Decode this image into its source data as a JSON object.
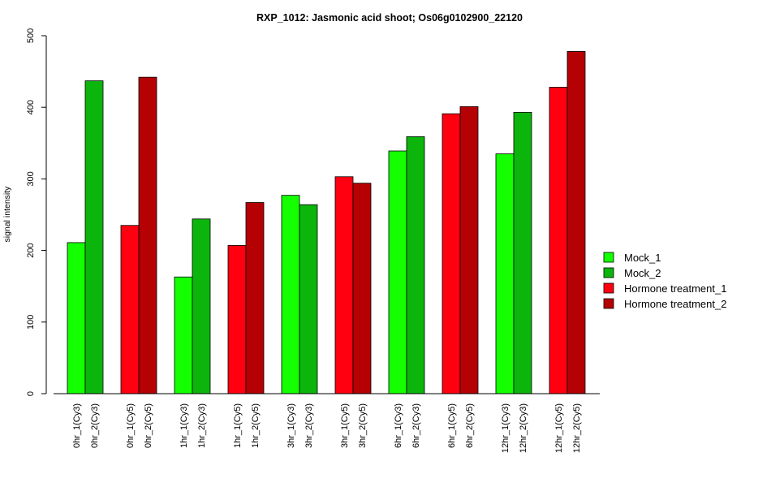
{
  "chart_data": {
    "type": "bar",
    "title": "RXP_1012: Jasmonic acid shoot; Os06g0102900_22120",
    "ylabel": "signal intensity",
    "xlabel": "",
    "ylim": [
      0,
      500
    ],
    "yticks": [
      0,
      100,
      200,
      300,
      400,
      500
    ],
    "grid": false,
    "legend_position": "right",
    "categories": [
      "0hr_1(Cy3)",
      "0hr_2(Cy3)",
      "0hr_1(Cy5)",
      "0hr_2(Cy5)",
      "1hr_1(Cy3)",
      "1hr_2(Cy3)",
      "1hr_1(Cy5)",
      "1hr_2(Cy5)",
      "3hr_1(Cy3)",
      "3hr_2(Cy3)",
      "3hr_1(Cy5)",
      "3hr_2(Cy5)",
      "6hr_1(Cy3)",
      "6hr_2(Cy3)",
      "6hr_1(Cy5)",
      "6hr_2(Cy5)",
      "12hr_1(Cy3)",
      "12hr_2(Cy3)",
      "12hr_1(Cy5)",
      "12hr_2(Cy5)"
    ],
    "values": [
      211,
      437,
      235,
      442,
      163,
      244,
      207,
      267,
      277,
      264,
      303,
      294,
      339,
      359,
      391,
      401,
      335,
      393,
      428,
      478
    ],
    "bar_series": [
      0,
      1,
      2,
      3,
      0,
      1,
      2,
      3,
      0,
      1,
      2,
      3,
      0,
      1,
      2,
      3,
      0,
      1,
      2,
      3
    ],
    "series": [
      {
        "name": "Mock_1",
        "color": "#14FF00"
      },
      {
        "name": "Mock_2",
        "color": "#0CB50C"
      },
      {
        "name": "Hormone treatment_1",
        "color": "#FF0011"
      },
      {
        "name": "Hormone treatment_2",
        "color": "#B50004"
      }
    ]
  }
}
